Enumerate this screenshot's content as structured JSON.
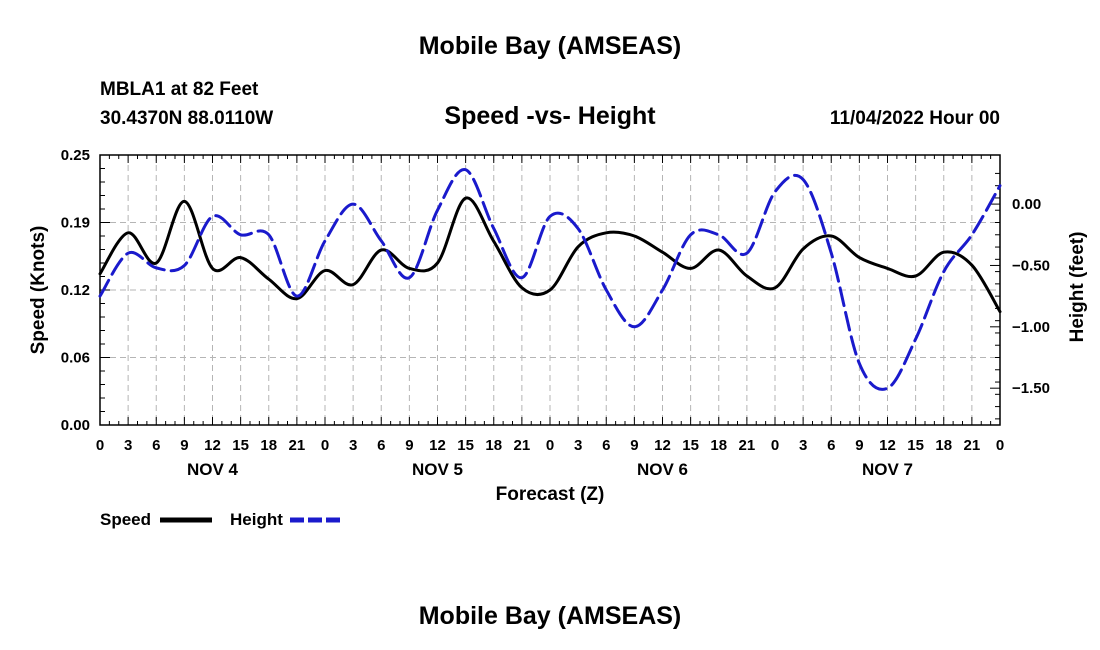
{
  "chart_data": {
    "type": "line",
    "title": "Mobile Bay (AMSEAS)",
    "subtitle": "Speed -vs- Height",
    "footer_title": "Mobile Bay (AMSEAS)",
    "station": "MBLA1 at 82 Feet",
    "location": "30.4370N  88.0110W",
    "timestamp": "11/04/2022 Hour 00",
    "xlabel": "Forecast (Z)",
    "ylabel_left": "Speed (Knots)",
    "ylabel_right": "Height (feet)",
    "xlim": [
      0,
      96
    ],
    "ylim_left": [
      0,
      0.25
    ],
    "ylim_right": [
      -1.8,
      0.4
    ],
    "x_tick_labels": [
      "0",
      "3",
      "6",
      "9",
      "12",
      "15",
      "18",
      "21",
      "0",
      "3",
      "6",
      "9",
      "12",
      "15",
      "18",
      "21",
      "0",
      "3",
      "6",
      "9",
      "12",
      "15",
      "18",
      "21",
      "0",
      "3",
      "6",
      "9",
      "12",
      "15",
      "18",
      "21",
      "0"
    ],
    "day_labels": [
      {
        "x": 12,
        "label": "NOV 4"
      },
      {
        "x": 36,
        "label": "NOV 5"
      },
      {
        "x": 60,
        "label": "NOV 6"
      },
      {
        "x": 84,
        "label": "NOV 7"
      }
    ],
    "y_left_ticks": [
      {
        "v": 0.0,
        "label": "0.00"
      },
      {
        "v": 0.0625,
        "label": "0.06"
      },
      {
        "v": 0.125,
        "label": "0.12"
      },
      {
        "v": 0.1875,
        "label": "0.19"
      },
      {
        "v": 0.25,
        "label": "0.25"
      }
    ],
    "y_right_ticks": [
      {
        "v": 0.0,
        "label": "0.00"
      },
      {
        "v": -0.5,
        "label": "−0.50"
      },
      {
        "v": -1.0,
        "label": "−1.00"
      },
      {
        "v": -1.5,
        "label": "−1.50"
      }
    ],
    "legend": [
      {
        "name": "Speed",
        "color": "#000000",
        "style": "solid"
      },
      {
        "name": "Height",
        "color": "#1a1acc",
        "style": "dashed"
      }
    ],
    "series": [
      {
        "name": "Speed",
        "axis": "left",
        "color": "#000000",
        "x": [
          0,
          3,
          6,
          9,
          12,
          15,
          18,
          21,
          24,
          27,
          30,
          33,
          36,
          39,
          42,
          45,
          48,
          51,
          54,
          57,
          60,
          63,
          66,
          69,
          72,
          75,
          78,
          81,
          84,
          87,
          90,
          93,
          96
        ],
        "values": [
          0.14,
          0.178,
          0.15,
          0.207,
          0.145,
          0.155,
          0.135,
          0.117,
          0.143,
          0.13,
          0.162,
          0.145,
          0.15,
          0.21,
          0.17,
          0.127,
          0.125,
          0.165,
          0.178,
          0.175,
          0.16,
          0.145,
          0.162,
          0.138,
          0.127,
          0.163,
          0.175,
          0.155,
          0.145,
          0.138,
          0.16,
          0.148,
          0.105
        ]
      },
      {
        "name": "Height",
        "axis": "right",
        "color": "#1a1acc",
        "x": [
          0,
          3,
          6,
          9,
          12,
          15,
          18,
          21,
          24,
          27,
          30,
          33,
          36,
          39,
          42,
          45,
          48,
          51,
          54,
          57,
          60,
          63,
          66,
          69,
          72,
          75,
          78,
          81,
          84,
          87,
          90,
          93,
          96
        ],
        "values": [
          -0.75,
          -0.4,
          -0.52,
          -0.5,
          -0.1,
          -0.25,
          -0.25,
          -0.75,
          -0.3,
          0.0,
          -0.3,
          -0.6,
          -0.05,
          0.28,
          -0.2,
          -0.6,
          -0.1,
          -0.2,
          -0.7,
          -1.0,
          -0.7,
          -0.25,
          -0.25,
          -0.4,
          0.1,
          0.2,
          -0.4,
          -1.3,
          -1.5,
          -1.1,
          -0.55,
          -0.25,
          0.15
        ]
      }
    ]
  }
}
